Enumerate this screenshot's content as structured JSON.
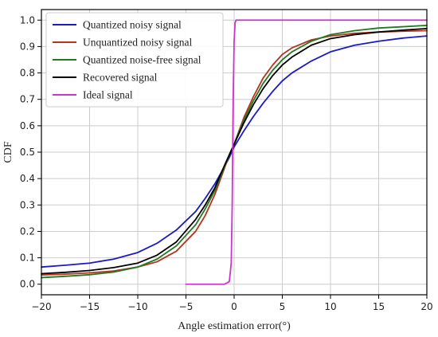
{
  "chart_data": {
    "type": "line",
    "xlabel": "Angle estimation error(°)",
    "ylabel": "CDF",
    "xlim": [
      -20,
      20
    ],
    "ylim": [
      -0.04,
      1.04
    ],
    "x_ticks": [
      -20,
      -15,
      -10,
      -5,
      0,
      5,
      10,
      15,
      20
    ],
    "x_tick_labels": [
      "−20",
      "−15",
      "−10",
      "−5",
      "0",
      "5",
      "10",
      "15",
      "20"
    ],
    "y_ticks": [
      0.0,
      0.1,
      0.2,
      0.3,
      0.4,
      0.5,
      0.6,
      0.7,
      0.8,
      0.9,
      1.0
    ],
    "y_tick_labels": [
      "0.0",
      "0.1",
      "0.2",
      "0.3",
      "0.4",
      "0.5",
      "0.6",
      "0.7",
      "0.8",
      "0.9",
      "1.0"
    ],
    "grid": true,
    "legend_position": "top-left",
    "series": [
      {
        "name": "Quantized noisy signal",
        "color": "#1a1ac8",
        "x": [
          -20,
          -17.5,
          -15,
          -12.5,
          -10,
          -8,
          -6,
          -4,
          -3,
          -2,
          -1,
          -0.5,
          0,
          0.5,
          1,
          2,
          3,
          4,
          5,
          6,
          8,
          10,
          12.5,
          15,
          17.5,
          20
        ],
        "y": [
          0.065,
          0.072,
          0.08,
          0.095,
          0.12,
          0.155,
          0.205,
          0.275,
          0.325,
          0.38,
          0.445,
          0.48,
          0.52,
          0.55,
          0.58,
          0.635,
          0.685,
          0.73,
          0.77,
          0.8,
          0.845,
          0.88,
          0.905,
          0.92,
          0.932,
          0.94
        ]
      },
      {
        "name": "Unquantized noisy signal",
        "color": "#b8321e",
        "x": [
          -20,
          -17.5,
          -15,
          -12.5,
          -10,
          -8,
          -6,
          -4,
          -3,
          -2,
          -1,
          -0.5,
          0,
          0.5,
          1,
          2,
          3,
          4,
          5,
          6,
          8,
          10,
          12.5,
          15,
          17.5,
          20
        ],
        "y": [
          0.035,
          0.038,
          0.043,
          0.05,
          0.065,
          0.085,
          0.125,
          0.2,
          0.26,
          0.34,
          0.44,
          0.49,
          0.53,
          0.58,
          0.63,
          0.71,
          0.78,
          0.83,
          0.87,
          0.895,
          0.925,
          0.94,
          0.95,
          0.955,
          0.958,
          0.96
        ]
      },
      {
        "name": "Quantized noise-free signal",
        "color": "#207a20",
        "x": [
          -20,
          -17.5,
          -15,
          -12.5,
          -10,
          -8,
          -6,
          -4,
          -3,
          -2,
          -1,
          -0.5,
          0,
          0.5,
          1,
          2,
          3,
          4,
          5,
          6,
          8,
          10,
          12.5,
          15,
          17.5,
          20
        ],
        "y": [
          0.025,
          0.03,
          0.036,
          0.046,
          0.065,
          0.095,
          0.145,
          0.225,
          0.285,
          0.355,
          0.445,
          0.49,
          0.53,
          0.575,
          0.62,
          0.695,
          0.76,
          0.81,
          0.85,
          0.88,
          0.92,
          0.945,
          0.96,
          0.97,
          0.975,
          0.98
        ]
      },
      {
        "name": "Recovered signal",
        "color": "#000000",
        "x": [
          -20,
          -17.5,
          -15,
          -12.5,
          -10,
          -8,
          -6,
          -4,
          -3,
          -2,
          -1,
          -0.5,
          0,
          0.5,
          1,
          2,
          3,
          4,
          5,
          6,
          8,
          10,
          12.5,
          15,
          17.5,
          20
        ],
        "y": [
          0.04,
          0.045,
          0.052,
          0.063,
          0.08,
          0.11,
          0.16,
          0.245,
          0.3,
          0.365,
          0.45,
          0.49,
          0.53,
          0.57,
          0.61,
          0.68,
          0.74,
          0.79,
          0.83,
          0.86,
          0.905,
          0.93,
          0.945,
          0.955,
          0.962,
          0.968
        ]
      },
      {
        "name": "Ideal signal",
        "color": "#cc33cc",
        "x": [
          -5,
          -1,
          -0.5,
          -0.3,
          -0.2,
          -0.1,
          0,
          0.1,
          0.2,
          0.4,
          5,
          10,
          15,
          20
        ],
        "y": [
          0.0,
          0.0,
          0.01,
          0.08,
          0.3,
          0.7,
          0.92,
          0.99,
          1.0,
          1.0,
          1.0,
          1.0,
          1.0,
          1.0
        ]
      }
    ]
  }
}
